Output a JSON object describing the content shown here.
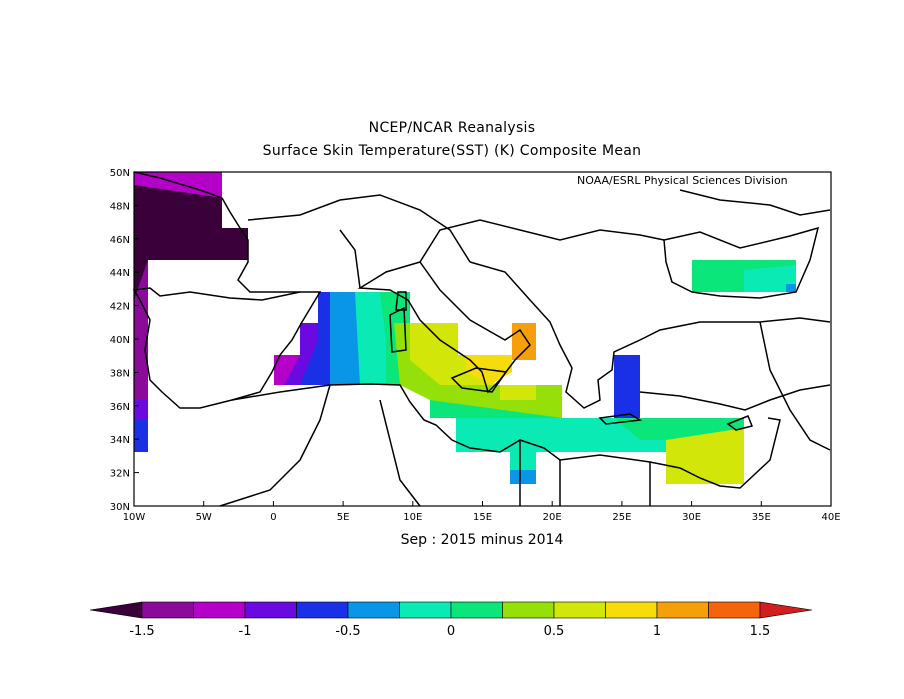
{
  "title_line1": "NCEP/NCAR Reanalysis",
  "title_line2": "Surface Skin Temperature(SST) (K) Composite Mean",
  "credit": "NOAA/ESRL Physical Sciences Division",
  "subtitle": "Sep : 2015 minus 2014",
  "map": {
    "lon_range": [
      -10,
      40
    ],
    "lat_range": [
      30,
      50
    ],
    "lon_ticks": [
      "10W",
      "5W",
      "0",
      "5E",
      "10E",
      "15E",
      "20E",
      "25E",
      "30E",
      "35E",
      "40E"
    ],
    "lat_ticks": [
      "50N",
      "48N",
      "46N",
      "44N",
      "42N",
      "40N",
      "38N",
      "36N",
      "34N",
      "32N",
      "30N"
    ]
  },
  "colorbar": {
    "labels": [
      "-1.5",
      "-1",
      "-0.5",
      "0",
      "0.5",
      "1",
      "1.5"
    ],
    "colors": [
      "#3a003a",
      "#8a0a9a",
      "#b400c8",
      "#6a0ae0",
      "#1a30e6",
      "#0a96e6",
      "#0aeab4",
      "#0ae67a",
      "#96e00a",
      "#d2e60a",
      "#f5dc0a",
      "#f5a00a",
      "#f5640a",
      "#d21e1e"
    ]
  }
}
